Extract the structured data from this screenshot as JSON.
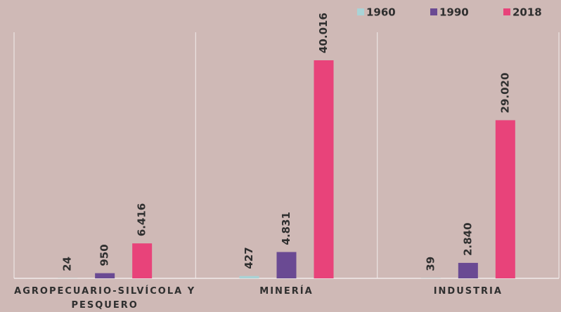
{
  "chart_data": {
    "type": "bar",
    "categories": [
      "AGROPECUARIO-SILVÍCOLA Y PESQUERO",
      "MINERÍA",
      "INDUSTRIA"
    ],
    "series": [
      {
        "name": "1960",
        "color": "#a9d3d6",
        "values": [
          24,
          427,
          39
        ]
      },
      {
        "name": "1990",
        "color": "#6a4a93",
        "values": [
          950,
          4831,
          2840
        ],
        "value_labels": [
          "950",
          "4.831",
          "2.840"
        ]
      },
      {
        "name": "2018",
        "color": "#e8437a",
        "values": [
          6416,
          40016,
          29020
        ],
        "value_labels": [
          "6.416",
          "40.016",
          "29.020"
        ]
      }
    ],
    "legend": "top-right"
  }
}
